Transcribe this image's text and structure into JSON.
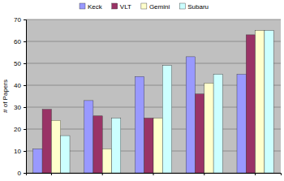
{
  "chart_data": {
    "type": "bar",
    "y_label": "# of Papers",
    "categories": [
      null,
      null,
      null,
      null,
      null
    ],
    "series": [
      {
        "name": "Keck",
        "color": "#9999ff",
        "values": [
          11,
          33,
          44,
          53,
          45
        ]
      },
      {
        "name": "VLT",
        "color": "#993366",
        "values": [
          29,
          26,
          25,
          36,
          63
        ]
      },
      {
        "name": "Gemini",
        "color": "#ffffcc",
        "values": [
          24,
          11,
          25,
          41,
          65
        ]
      },
      {
        "name": "Subaru",
        "color": "#ccffff",
        "values": [
          17,
          25,
          49,
          45,
          65
        ]
      }
    ],
    "ylim": [
      0,
      70
    ],
    "yticks": [
      0,
      10,
      20,
      30,
      40,
      50,
      60,
      70
    ],
    "grid": true,
    "legend": "top"
  }
}
